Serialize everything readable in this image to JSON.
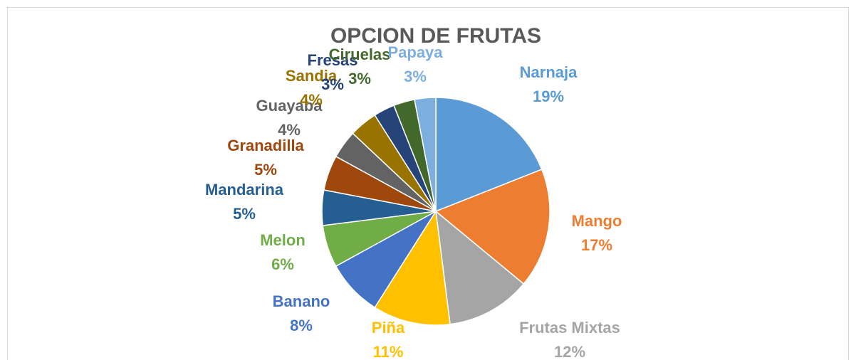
{
  "chart_data": {
    "type": "pie",
    "title": "OPCION DE FRUTAS",
    "categories": [
      "Narnaja",
      "Mango",
      "Frutas Mixtas",
      "Piña",
      "Banano",
      "Melon",
      "Mandarina",
      "Granadilla",
      "Guayaba",
      "Sandia",
      "Fresas",
      "Ciruelas",
      "Papaya"
    ],
    "values": [
      19,
      17,
      12,
      11,
      8,
      6,
      5,
      5,
      4,
      4,
      3,
      3,
      3
    ],
    "value_labels": [
      "19%",
      "17%",
      "12%",
      "11%",
      "8%",
      "6%",
      "5%",
      "5%",
      "4%",
      "4%",
      "3%",
      "3%",
      "3%"
    ],
    "colors": [
      "#5b9bd5",
      "#ed7d31",
      "#a5a5a5",
      "#ffc000",
      "#4472c4",
      "#70ad47",
      "#255e91",
      "#9e480e",
      "#636363",
      "#997300",
      "#264478",
      "#43682b",
      "#7cafdd"
    ]
  }
}
